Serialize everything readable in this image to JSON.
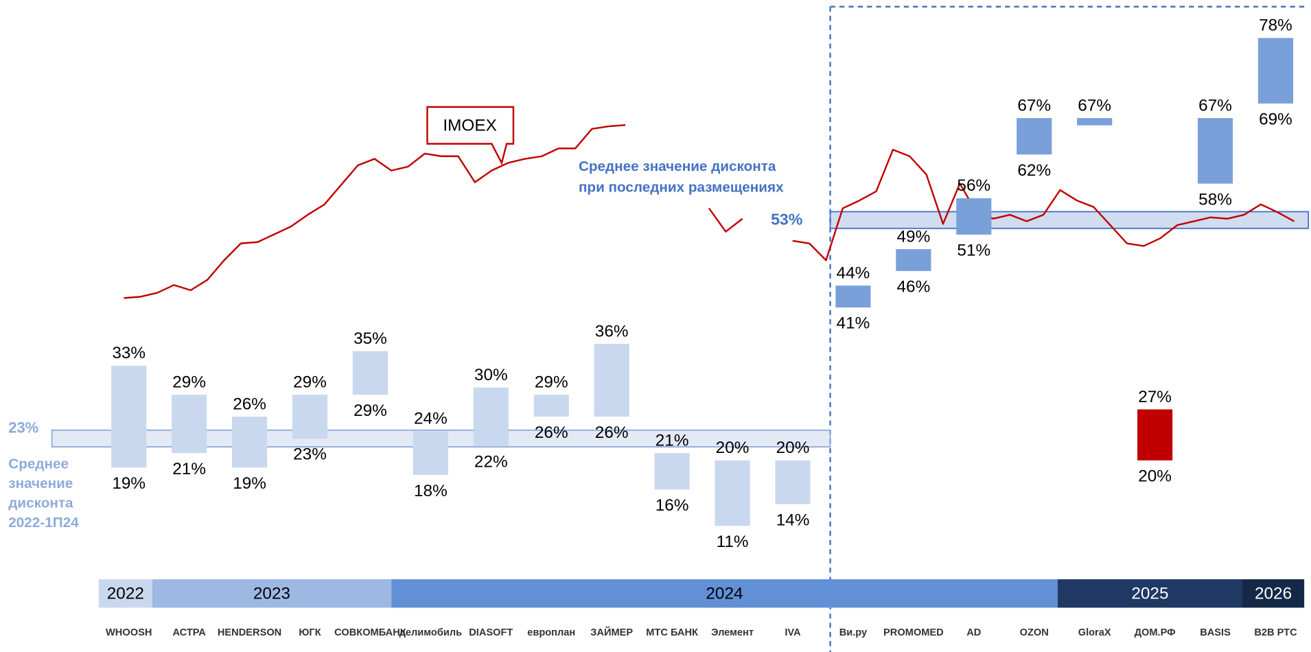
{
  "chart_data": {
    "type": "range_bar",
    "categories": [
      "WHOOSH",
      "АСТРА",
      "HENDERSON",
      "ЮГК",
      "СОВКОМБАНК",
      "делимобиль",
      "DIASOFT",
      "европлан",
      "ЗАЙМЕР",
      "МТС БАНК",
      "Элемент",
      "IVA",
      "Ви.ру",
      "PROMOMED",
      "AD",
      "OZON",
      "GloraX",
      "ДОМ.РФ",
      "BASIS",
      "B2B РТС"
    ],
    "high": [
      33,
      29,
      26,
      29,
      35,
      24,
      30,
      29,
      36,
      21,
      20,
      20,
      44,
      49,
      56,
      67,
      67,
      27,
      67,
      78
    ],
    "low": [
      19,
      21,
      19,
      23,
      29,
      18,
      22,
      26,
      26,
      16,
      11,
      14,
      41,
      46,
      51,
      62,
      66,
      20,
      58,
      69
    ],
    "high_labels": [
      "33%",
      "29%",
      "26%",
      "29%",
      "35%",
      "24%",
      "30%",
      "29%",
      "36%",
      "21%",
      "20%",
      "20%",
      "44%",
      "49%",
      "56%",
      "67%",
      "67%",
      "27%",
      "67%",
      "78%"
    ],
    "low_labels": [
      "19%",
      "21%",
      "19%",
      "23%",
      "29%",
      "18%",
      "22%",
      "26%",
      "26%",
      "16%",
      "11%",
      "14%",
      "41%",
      "46%",
      "51%",
      "62%",
      null,
      "20%",
      "58%",
      "69%"
    ],
    "colors": [
      "#c9d8ee",
      "#c9d8ee",
      "#c9d8ee",
      "#c9d8ee",
      "#c9d8ee",
      "#c9d8ee",
      "#c9d8ee",
      "#c9d8ee",
      "#c9d8ee",
      "#c9d8ee",
      "#c9d8ee",
      "#c9d8ee",
      "#7aa0da",
      "#7aa0da",
      "#7aa0da",
      "#7aa0da",
      "#7aa0da",
      "#c00000",
      "#7aa0da",
      "#7aa0da"
    ],
    "ylim": [
      0,
      80
    ],
    "averages": [
      {
        "value": 23,
        "label": "23%",
        "color": "#8eaadb",
        "note": [
          "Среднее",
          "значение",
          "дисконта",
          "2022-1П24"
        ]
      },
      {
        "value": 53,
        "label": "53%",
        "color": "#4472c4",
        "note": [
          "Среднее значение дисконта",
          "при последних размещениях"
        ]
      }
    ],
    "line": {
      "name": "IMOEX",
      "color": "#c00000",
      "y2lim": [
        2000,
        3600
      ],
      "values": [
        2170,
        2180,
        2210,
        2270,
        2230,
        2310,
        2460,
        2590,
        2600,
        2660,
        2720,
        2810,
        2890,
        3040,
        3190,
        3240,
        3150,
        3180,
        3280,
        3260,
        3260,
        3060,
        3150,
        3210,
        3240,
        3260,
        3320,
        3320,
        3470,
        3490,
        3500,
        null,
        null,
        null,
        null,
        2860,
        2680,
        2780,
        null,
        null,
        2610,
        2590,
        2460,
        2860,
        2920,
        2990,
        3310,
        3260,
        3120,
        2740,
        3050,
        2830,
        2780,
        2810,
        2760,
        2810,
        3000,
        2920,
        2870,
        2730,
        2590,
        2570,
        2630,
        2730,
        2760,
        2790,
        2780,
        2810,
        2890,
        2830,
        2760
      ]
    },
    "timeline": [
      "2022",
      "2023",
      "2024",
      "2025",
      "2026"
    ]
  }
}
